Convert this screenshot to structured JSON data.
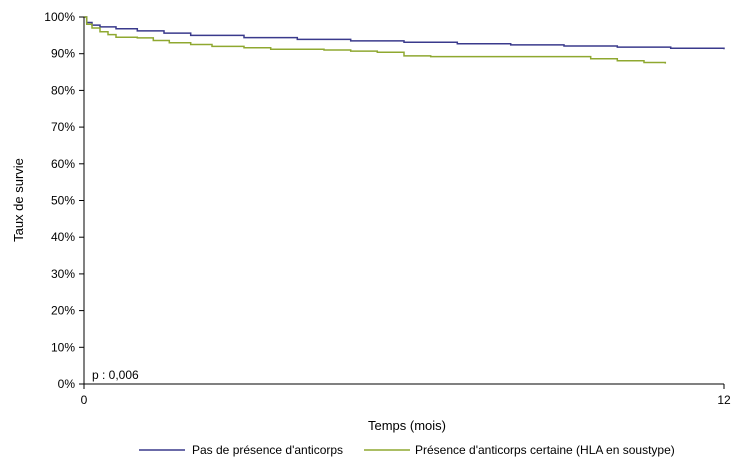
{
  "chart_data": {
    "type": "line",
    "title": "",
    "xlabel": "Temps (mois)",
    "ylabel": "Taux de survie",
    "xlim": [
      0,
      12
    ],
    "ylim": [
      0,
      100
    ],
    "x_ticks": [
      0,
      12
    ],
    "y_ticks": [
      0,
      10,
      20,
      30,
      40,
      50,
      60,
      70,
      80,
      90,
      100
    ],
    "y_tick_labels": [
      "0%",
      "10%",
      "20%",
      "30%",
      "40%",
      "50%",
      "60%",
      "70%",
      "80%",
      "90%",
      "100%"
    ],
    "annotation": "p : 0,006",
    "grid": false,
    "legend_position": "bottom",
    "series": [
      {
        "name": "Pas de présence d'anticorps",
        "color": "#3a3a8c",
        "x": [
          0,
          0.05,
          0.15,
          0.3,
          0.6,
          1.0,
          1.5,
          2.0,
          3.0,
          4.0,
          5.0,
          6.0,
          7.0,
          8.0,
          9.0,
          10.0,
          11.0,
          12.0
        ],
        "y": [
          100,
          98.5,
          97.8,
          97.3,
          96.8,
          96.2,
          95.6,
          95.0,
          94.4,
          93.9,
          93.5,
          93.1,
          92.7,
          92.4,
          92.1,
          91.8,
          91.5,
          91.2
        ]
      },
      {
        "name": "Présence d'anticorps certaine (HLA en soustype)",
        "color": "#8fa830",
        "x": [
          0,
          0.05,
          0.15,
          0.3,
          0.45,
          0.6,
          1.0,
          1.3,
          1.6,
          2.0,
          2.4,
          3.0,
          3.5,
          4.0,
          4.5,
          5.0,
          5.5,
          6.0,
          6.5,
          7.0,
          7.5,
          8.0,
          8.5,
          9.0,
          9.5,
          10.0,
          10.5,
          10.9
        ],
        "y": [
          100,
          98.0,
          97.0,
          96.0,
          95.2,
          94.5,
          94.3,
          93.6,
          93.0,
          92.5,
          92.0,
          91.6,
          91.2,
          91.2,
          91.0,
          90.7,
          90.4,
          89.4,
          89.2,
          89.2,
          89.2,
          89.2,
          89.2,
          89.2,
          88.6,
          88.1,
          87.6,
          87.3
        ]
      }
    ]
  }
}
